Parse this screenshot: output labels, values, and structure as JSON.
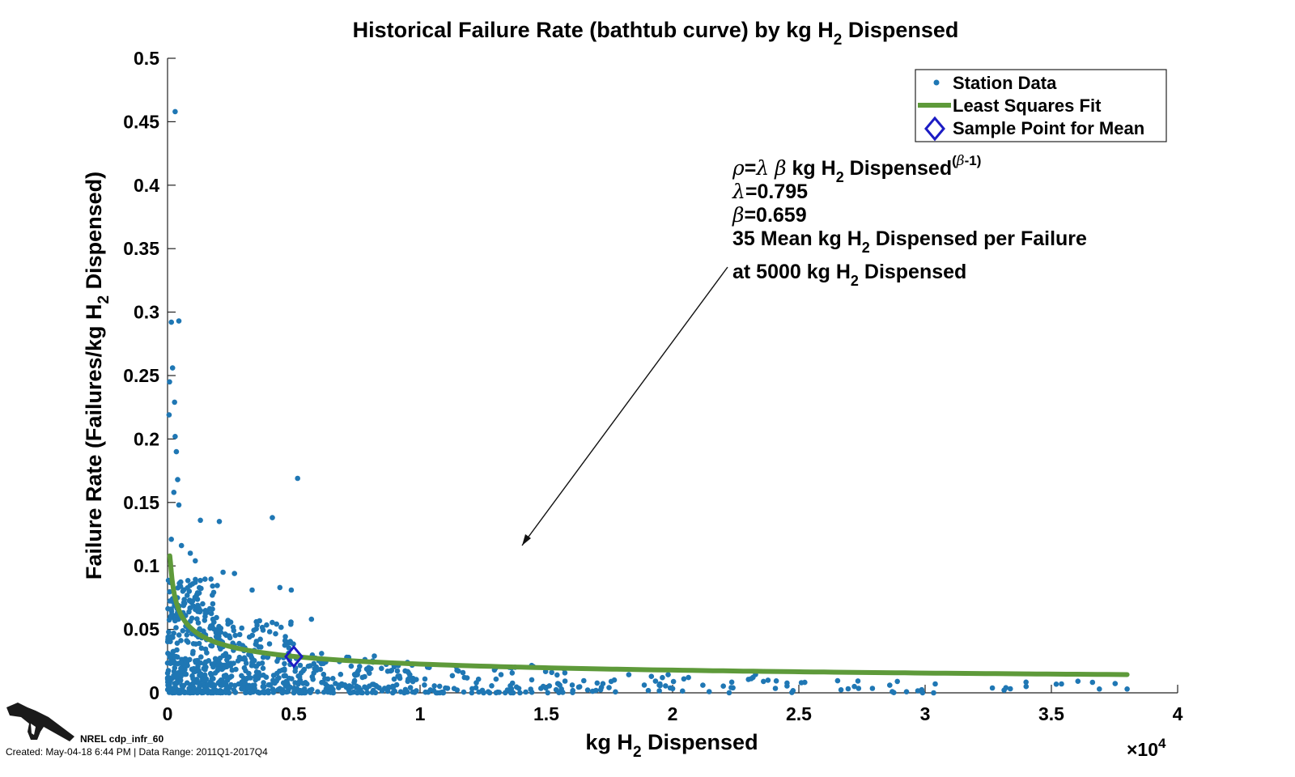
{
  "chart_data": {
    "type": "scatter",
    "title_main": "Historical Failure Rate (bathtub curve) by kg H",
    "title_sub": "2",
    "title_tail": " Dispensed",
    "xlabel_main": "kg H",
    "xlabel_sub": "2",
    "xlabel_tail": " Dispensed",
    "ylabel_main": "Failure Rate (Failures/kg H",
    "ylabel_sub": "2",
    "ylabel_tail": " Dispensed)",
    "xlim": [
      0,
      40000
    ],
    "ylim": [
      0,
      0.5
    ],
    "x_ticks": [
      0,
      5000,
      10000,
      15000,
      20000,
      25000,
      30000,
      35000,
      40000
    ],
    "x_tick_labels": [
      "0",
      "0.5",
      "1",
      "1.5",
      "2",
      "2.5",
      "3",
      "3.5",
      "4"
    ],
    "y_ticks": [
      0,
      0.05,
      0.1,
      0.15,
      0.2,
      0.25,
      0.3,
      0.35,
      0.4,
      0.45,
      0.5
    ],
    "y_tick_labels": [
      "0",
      "0.05",
      "0.1",
      "0.15",
      "0.2",
      "0.25",
      "0.3",
      "0.35",
      "0.4",
      "0.45",
      "0.5"
    ],
    "x_multiplier": "×10",
    "x_multiplier_exp": "4",
    "legend": {
      "position": "top-right",
      "entries": [
        "Station Data",
        "Least Squares Fit",
        "Sample Point for Mean"
      ]
    },
    "fit": {
      "lambda": 0.795,
      "beta": 0.659,
      "x_max": 38000
    },
    "sample_point": {
      "x": 5000,
      "y": 0.0285
    },
    "outliers": [
      {
        "x": 300,
        "y": 0.458
      },
      {
        "x": 150,
        "y": 0.292
      },
      {
        "x": 450,
        "y": 0.293
      },
      {
        "x": 200,
        "y": 0.256
      },
      {
        "x": 80,
        "y": 0.245
      },
      {
        "x": 280,
        "y": 0.229
      },
      {
        "x": 60,
        "y": 0.219
      },
      {
        "x": 300,
        "y": 0.202
      },
      {
        "x": 350,
        "y": 0.19
      },
      {
        "x": 400,
        "y": 0.168
      },
      {
        "x": 250,
        "y": 0.158
      },
      {
        "x": 450,
        "y": 0.148
      },
      {
        "x": 5150,
        "y": 0.169
      },
      {
        "x": 4150,
        "y": 0.138
      },
      {
        "x": 1300,
        "y": 0.136
      },
      {
        "x": 2050,
        "y": 0.135
      },
      {
        "x": 150,
        "y": 0.121
      },
      {
        "x": 550,
        "y": 0.116
      },
      {
        "x": 900,
        "y": 0.11
      },
      {
        "x": 1100,
        "y": 0.104
      },
      {
        "x": 2200,
        "y": 0.095
      },
      {
        "x": 2650,
        "y": 0.094
      },
      {
        "x": 3350,
        "y": 0.081
      },
      {
        "x": 4450,
        "y": 0.083
      },
      {
        "x": 4900,
        "y": 0.081
      },
      {
        "x": 5700,
        "y": 0.058
      },
      {
        "x": 6100,
        "y": 0.031
      },
      {
        "x": 7100,
        "y": 0.028
      },
      {
        "x": 9500,
        "y": 0.024
      },
      {
        "x": 15600,
        "y": 0.003
      },
      {
        "x": 19500,
        "y": 0.007
      },
      {
        "x": 21200,
        "y": 0.006
      },
      {
        "x": 23600,
        "y": 0.009
      },
      {
        "x": 25100,
        "y": 0.008
      },
      {
        "x": 27200,
        "y": 0.005
      },
      {
        "x": 28600,
        "y": 0.006
      },
      {
        "x": 28900,
        "y": 0.009
      },
      {
        "x": 30400,
        "y": 0.007
      },
      {
        "x": 33200,
        "y": 0.004
      },
      {
        "x": 34000,
        "y": 0.005
      },
      {
        "x": 35400,
        "y": 0.007
      },
      {
        "x": 36900,
        "y": 0.003
      },
      {
        "x": 38000,
        "y": 0.003
      }
    ],
    "cloud_regions": [
      {
        "x0": 0,
        "x1": 2000,
        "y0": 0.0,
        "y1": 0.09,
        "n": 360
      },
      {
        "x0": 2000,
        "y0": 0.0,
        "x1": 5000,
        "y1": 0.06,
        "n": 260
      },
      {
        "x0": 5000,
        "x1": 9000,
        "y0": 0.0,
        "y1": 0.03,
        "n": 150
      },
      {
        "x0": 9000,
        "x1": 16000,
        "y0": 0.0,
        "y1": 0.022,
        "n": 110
      },
      {
        "x0": 16000,
        "x1": 24000,
        "y0": 0.0,
        "y1": 0.016,
        "n": 45
      },
      {
        "x0": 24000,
        "x1": 38000,
        "y0": 0.0,
        "y1": 0.012,
        "n": 28
      }
    ],
    "colors": {
      "points": "#1f77b4",
      "fit_line": "#5e9a3a",
      "sample_point": "#1c1cc4",
      "text": "#111111"
    }
  },
  "annotation": {
    "formula_rho": "ρ",
    "formula_eq": "=",
    "formula_lambda": "λ",
    "formula_beta": "β",
    "formula_kg": " kg H",
    "formula_sub": "2",
    "formula_tail": " Dispensed",
    "formula_exp_beta": "β",
    "formula_exp_tail": "-1)",
    "formula_exp_open": "(",
    "lambda_line_symbol": "λ",
    "lambda_line_value": "=0.795",
    "beta_line_symbol": "β",
    "beta_line_value": "=0.659",
    "mean_line_main": "35 Mean kg H",
    "mean_line_sub": "2",
    "mean_line_tail": " Dispensed per Failure",
    "at_line_main": "at 5000 kg H",
    "at_line_sub": "2",
    "at_line_tail": " Dispensed"
  },
  "footer": {
    "label": "NREL cdp_infr_60",
    "created": "Created: May-04-18  6:44 PM | Data Range: 2011Q1-2017Q4"
  }
}
